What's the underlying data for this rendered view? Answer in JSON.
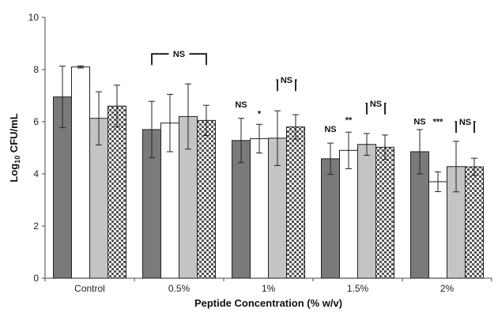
{
  "chart_data": {
    "type": "bar",
    "title": "",
    "xlabel": "Peptide Concentration (% w/v)",
    "ylabel_main": "Log",
    "ylabel_sub": "10",
    "ylabel_rest": " CFU/mL",
    "ylim": [
      0,
      10
    ],
    "yticks": [
      "0",
      "2",
      "4",
      "6",
      "8",
      "10"
    ],
    "grid": false,
    "legend": "none",
    "categories": [
      "Control",
      "0.5%",
      "1%",
      "1.5%",
      "2%"
    ],
    "series": [
      {
        "fill": "#7a7a7a",
        "pattern": "solid",
        "values": [
          6.95,
          5.7,
          5.28,
          4.58,
          4.85
        ],
        "errors": [
          1.18,
          1.08,
          0.85,
          0.6,
          0.85
        ]
      },
      {
        "fill": "#ffffff",
        "pattern": "solid",
        "values": [
          8.1,
          5.95,
          5.35,
          4.9,
          3.7
        ],
        "errors": [
          0.04,
          1.1,
          0.55,
          0.7,
          0.38
        ]
      },
      {
        "fill": "#c4c4c4",
        "pattern": "solid",
        "values": [
          6.13,
          6.2,
          5.37,
          5.13,
          4.28
        ],
        "errors": [
          1.02,
          1.25,
          1.05,
          0.42,
          0.97
        ]
      },
      {
        "fill": "#ffffff",
        "pattern": "checker",
        "values": [
          6.6,
          6.05,
          5.8,
          5.02,
          4.27
        ],
        "errors": [
          0.8,
          0.58,
          0.47,
          0.47,
          0.33
        ]
      }
    ],
    "annotations": [
      {
        "text": "NS",
        "type": "bracket",
        "category": 1,
        "from_series": 0,
        "to_series": 3,
        "y": 8.6
      },
      {
        "text": "NS",
        "type": "label",
        "category": 2,
        "series": 0,
        "y": 6.55
      },
      {
        "text": "*",
        "type": "label",
        "category": 2,
        "series": 1,
        "y": 6.2
      },
      {
        "text": "NS",
        "type": "bracket",
        "category": 2,
        "from_series": 2,
        "to_series": 3,
        "y": 7.6
      },
      {
        "text": "NS",
        "type": "label",
        "category": 3,
        "series": 0,
        "y": 5.6
      },
      {
        "text": "**",
        "type": "label",
        "category": 3,
        "series": 1,
        "y": 5.95
      },
      {
        "text": "NS",
        "type": "bracket",
        "category": 3,
        "from_series": 2,
        "to_series": 3,
        "y": 6.7
      },
      {
        "text": "NS",
        "type": "label",
        "category": 4,
        "series": 0,
        "y": 5.9
      },
      {
        "text": "***",
        "type": "label",
        "category": 4,
        "series": 1,
        "y": 5.9
      },
      {
        "text": "NS",
        "type": "bracket",
        "category": 4,
        "from_series": 2,
        "to_series": 3,
        "y": 6.0
      }
    ]
  }
}
